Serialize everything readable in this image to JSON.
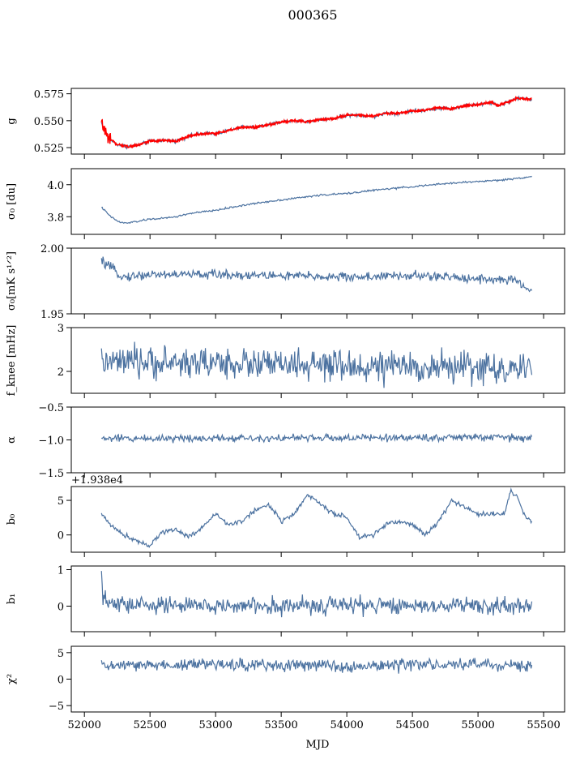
{
  "figure": {
    "title": "000365",
    "xlabel": "MJD"
  },
  "colors": {
    "series": "#4c72a0",
    "highlight": "#ff0000",
    "axes": "#000000"
  },
  "shared_x": {
    "range": [
      51900,
      55660
    ],
    "ticks": [
      52000,
      52500,
      53000,
      53500,
      54000,
      54500,
      55000,
      55500
    ],
    "tick_labels": [
      "52000",
      "52500",
      "53000",
      "53500",
      "54000",
      "54500",
      "55000",
      "55500"
    ],
    "data_start": 52130,
    "data_end": 55410,
    "samples": 560
  },
  "chart_data": [
    {
      "type": "line",
      "id": "g",
      "ylabel": "g",
      "ylim": [
        0.519,
        0.58
      ],
      "yticks": [
        0.525,
        0.55,
        0.575
      ],
      "ytick_labels": [
        "0.525",
        "0.550",
        "0.575"
      ],
      "series_color": "blue",
      "overlay_color": "red",
      "x": [
        52130,
        52180,
        52250,
        52330,
        52400,
        52500,
        52600,
        52700,
        52800,
        52900,
        53000,
        53100,
        53200,
        53300,
        53400,
        53500,
        53600,
        53700,
        53800,
        53900,
        54000,
        54100,
        54200,
        54300,
        54400,
        54500,
        54600,
        54700,
        54800,
        54900,
        55000,
        55100,
        55150,
        55200,
        55300,
        55400
      ],
      "values": [
        0.548,
        0.534,
        0.528,
        0.526,
        0.527,
        0.531,
        0.532,
        0.531,
        0.536,
        0.538,
        0.538,
        0.541,
        0.544,
        0.544,
        0.546,
        0.549,
        0.55,
        0.549,
        0.551,
        0.552,
        0.555,
        0.555,
        0.554,
        0.557,
        0.557,
        0.559,
        0.56,
        0.562,
        0.561,
        0.564,
        0.565,
        0.567,
        0.564,
        0.566,
        0.571,
        0.57
      ],
      "noise": 0.0012
    },
    {
      "type": "line",
      "id": "sigma0",
      "ylabel": "σ₀ [du]",
      "ylim": [
        3.69,
        4.1
      ],
      "yticks": [
        3.8,
        4.0
      ],
      "ytick_labels": [
        "3.8",
        "4.0"
      ],
      "series_color": "blue",
      "x": [
        52130,
        52200,
        52270,
        52320,
        52400,
        52500,
        52600,
        52700,
        52800,
        53000,
        53200,
        53400,
        53600,
        53800,
        54000,
        54200,
        54400,
        54600,
        54800,
        55000,
        55200,
        55400
      ],
      "values": [
        3.86,
        3.8,
        3.765,
        3.76,
        3.77,
        3.785,
        3.79,
        3.8,
        3.82,
        3.84,
        3.87,
        3.895,
        3.915,
        3.935,
        3.945,
        3.965,
        3.98,
        3.995,
        4.01,
        4.02,
        4.03,
        4.05
      ],
      "noise": 0.004
    },
    {
      "type": "line",
      "id": "sigma0_mks",
      "ylabel": "σ₀[mK s¹ᐟ²]",
      "ylim": [
        1.95,
        2.0
      ],
      "yticks": [
        1.95,
        2.0
      ],
      "ytick_labels": [
        "1.95",
        "2.00"
      ],
      "series_color": "blue",
      "x": [
        52130,
        52200,
        52300,
        52500,
        53000,
        53500,
        54000,
        54500,
        55000,
        55300,
        55400
      ],
      "values": [
        1.99,
        1.985,
        1.978,
        1.98,
        1.98,
        1.979,
        1.978,
        1.979,
        1.977,
        1.975,
        1.967
      ],
      "noise": 0.0025
    },
    {
      "type": "line",
      "id": "fknee",
      "ylabel": "f_knee [mHz]",
      "ylim": [
        1.5,
        3.0
      ],
      "yticks": [
        2,
        3
      ],
      "ytick_labels": [
        "2",
        "3"
      ],
      "series_color": "blue",
      "x": [
        52130,
        53000,
        54000,
        55000,
        55400
      ],
      "values": [
        2.2,
        2.2,
        2.1,
        2.1,
        2.0
      ],
      "noise": 0.25
    },
    {
      "type": "line",
      "id": "alpha",
      "ylabel": "α",
      "ylim": [
        -1.5,
        -0.5
      ],
      "yticks": [
        -1.5,
        -1.0,
        -0.5
      ],
      "ytick_labels": [
        "−1.5",
        "−1.0",
        "−0.5"
      ],
      "series_color": "blue",
      "x": [
        52130,
        53000,
        54000,
        55000,
        55400
      ],
      "values": [
        -0.98,
        -0.97,
        -0.97,
        -0.96,
        -0.97
      ],
      "noise": 0.04
    },
    {
      "type": "line",
      "id": "b0",
      "ylabel": "b₀",
      "ylim": [
        -2.5,
        7.0
      ],
      "offset_text": "+1.938e4",
      "yticks": [
        0,
        5
      ],
      "ytick_labels": [
        "0",
        "5"
      ],
      "series_color": "blue",
      "x": [
        52130,
        52200,
        52300,
        52400,
        52500,
        52600,
        52700,
        52800,
        52900,
        53000,
        53100,
        53200,
        53300,
        53400,
        53500,
        53600,
        53700,
        53800,
        53900,
        54000,
        54100,
        54200,
        54300,
        54400,
        54500,
        54600,
        54700,
        54800,
        54900,
        55000,
        55100,
        55200,
        55250,
        55300,
        55350,
        55400
      ],
      "values": [
        3.0,
        1.5,
        0.0,
        -0.8,
        -1.5,
        0.5,
        0.8,
        -0.3,
        1.2,
        3.0,
        1.5,
        2.0,
        3.5,
        4.5,
        2.0,
        3.0,
        5.8,
        4.5,
        3.0,
        2.5,
        -0.5,
        0.0,
        1.5,
        2.0,
        1.5,
        0.0,
        2.0,
        5.0,
        4.0,
        3.0,
        3.0,
        3.0,
        6.5,
        5.5,
        3.0,
        2.0
      ],
      "noise": 0.25
    },
    {
      "type": "line",
      "id": "b1",
      "ylabel": "b₁",
      "ylim": [
        -0.7,
        1.1
      ],
      "yticks": [
        0,
        1
      ],
      "ytick_labels": [
        "0",
        "1"
      ],
      "series_color": "blue",
      "x": [
        52130,
        52140,
        52200,
        53000,
        54000,
        55000,
        55400
      ],
      "values": [
        0.8,
        0.2,
        0.05,
        0.0,
        0.02,
        0.02,
        0.0
      ],
      "noise": 0.17
    },
    {
      "type": "line",
      "id": "chi2",
      "ylabel": "χ²",
      "ylim": [
        -6.2,
        6.2
      ],
      "yticks": [
        -5,
        0,
        5
      ],
      "ytick_labels": [
        "−5",
        "0",
        "5"
      ],
      "series_color": "blue",
      "x": [
        52130,
        53000,
        54000,
        55000,
        55400
      ],
      "values": [
        2.5,
        2.8,
        2.5,
        2.8,
        2.5
      ],
      "noise": 0.8
    }
  ]
}
